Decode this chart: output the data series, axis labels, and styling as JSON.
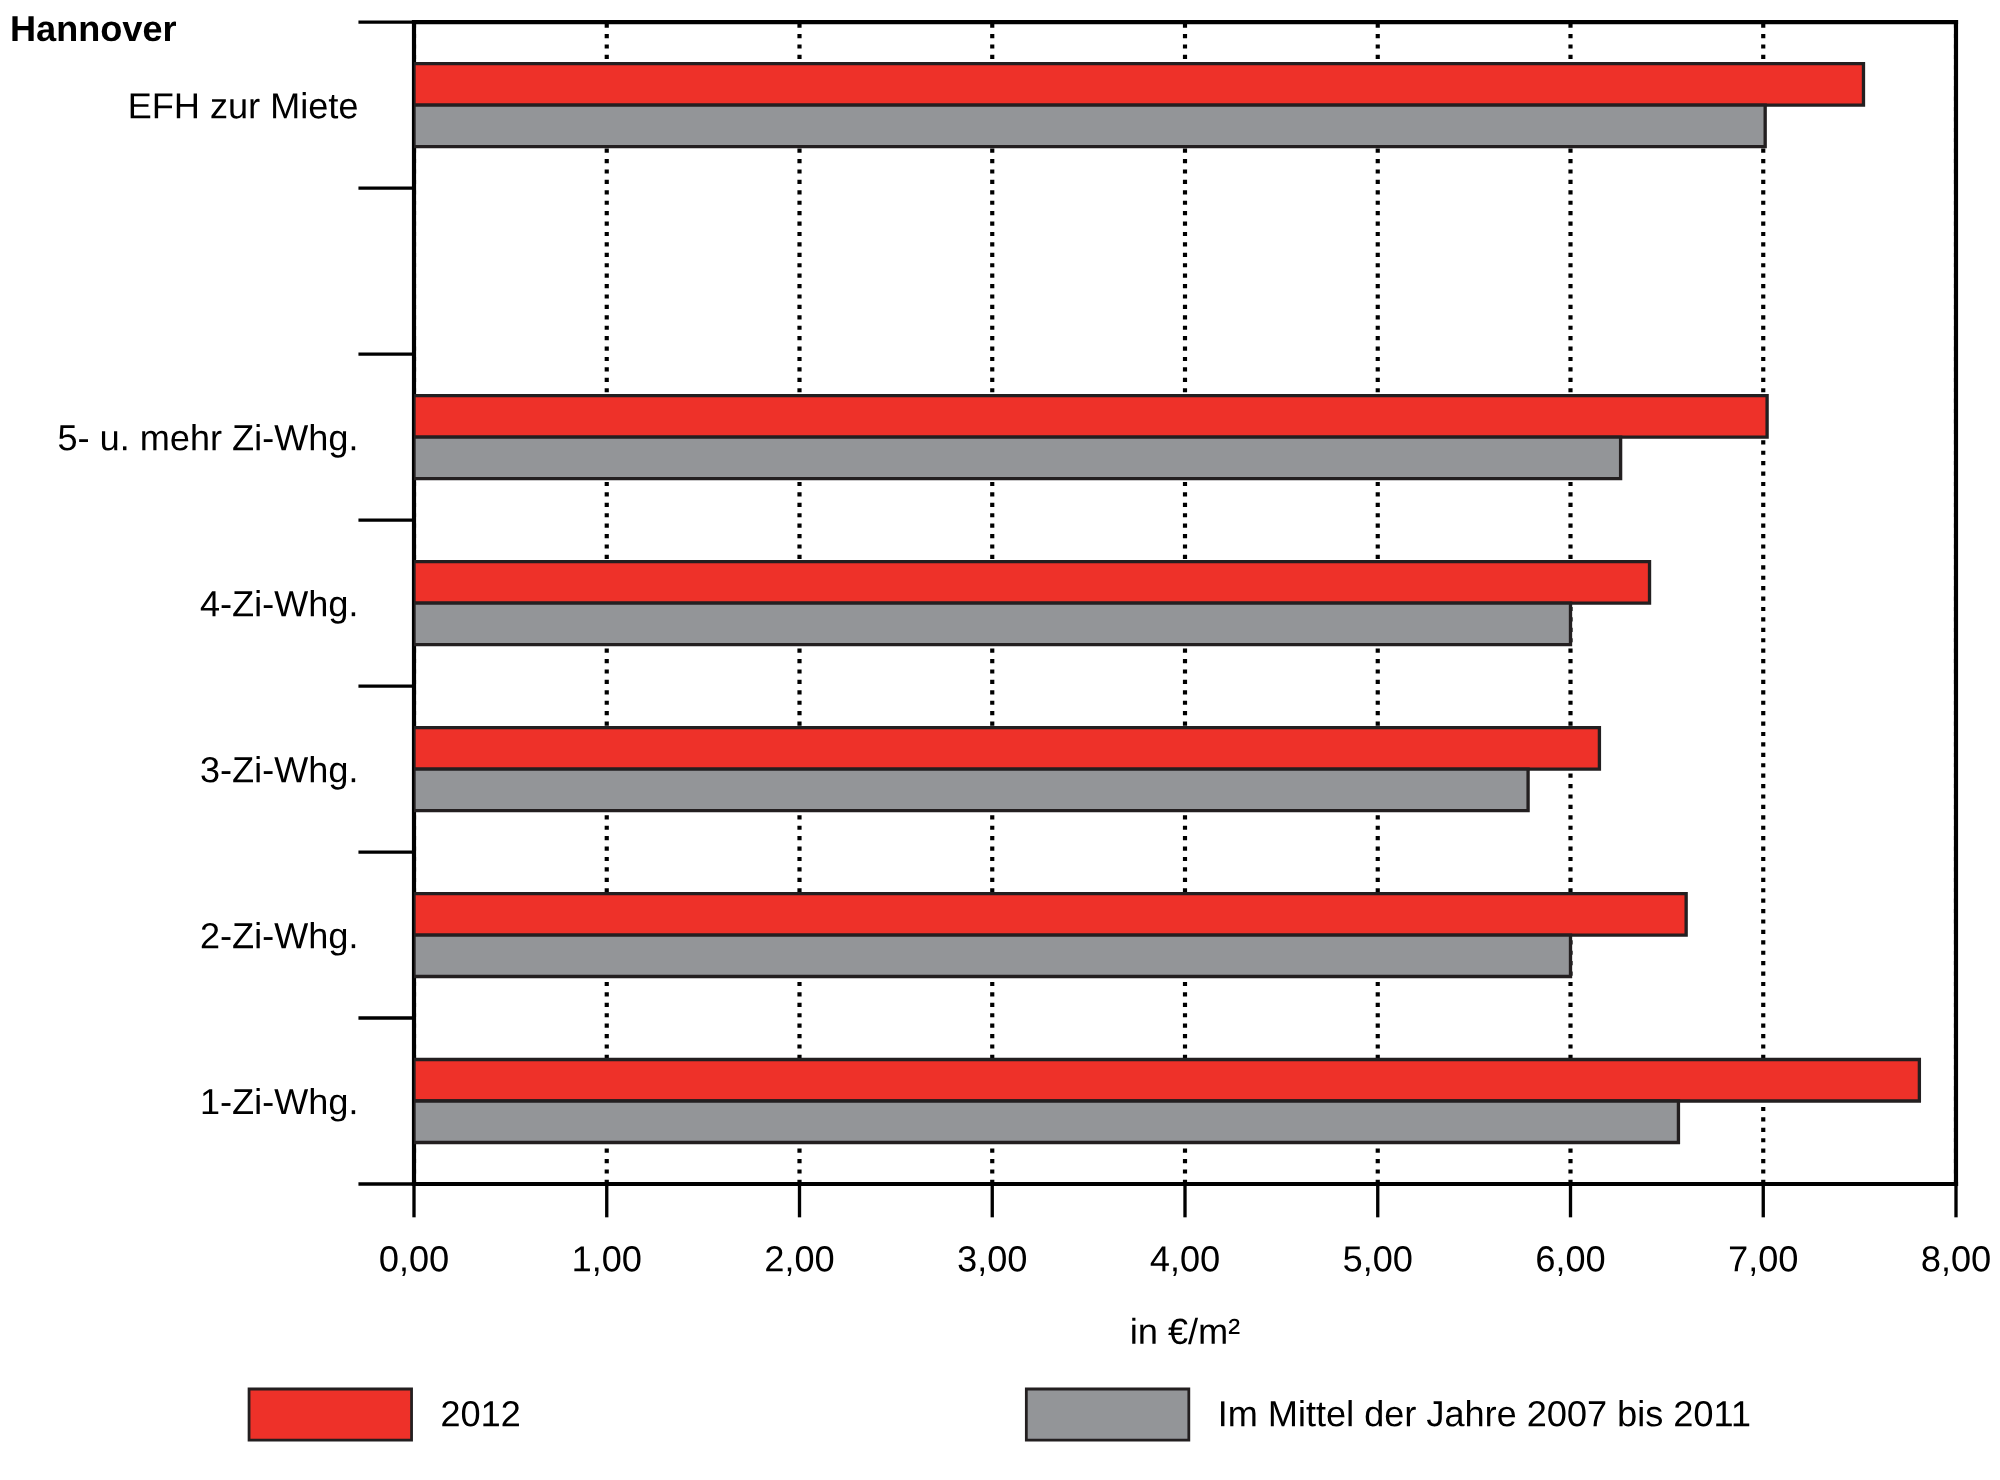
{
  "chart_data": {
    "type": "bar",
    "orientation": "horizontal",
    "title": "Hannover",
    "xlabel": "in €/m²",
    "categories": [
      "EFH zur Miete",
      null,
      "5- u. mehr Zi-Whg.",
      "4-Zi-Whg.",
      "3-Zi-Whg.",
      "2-Zi-Whg.",
      "1-Zi-Whg."
    ],
    "series": [
      {
        "name": "2012",
        "color": "#ee3129",
        "values": [
          7.52,
          null,
          7.02,
          6.41,
          6.15,
          6.6,
          7.81
        ]
      },
      {
        "name": "Im Mittel der Jahre 2007 bis 2011",
        "color": "#939598",
        "values": [
          7.01,
          null,
          6.26,
          6.0,
          5.78,
          6.0,
          6.56
        ]
      }
    ],
    "xlim": [
      0,
      8
    ],
    "xticks": [
      {
        "value": 0,
        "label": "0,00"
      },
      {
        "value": 1,
        "label": "1,00"
      },
      {
        "value": 2,
        "label": "2,00"
      },
      {
        "value": 3,
        "label": "3,00"
      },
      {
        "value": 4,
        "label": "4,00"
      },
      {
        "value": 5,
        "label": "5,00"
      },
      {
        "value": 6,
        "label": "6,00"
      },
      {
        "value": 7,
        "label": "7,00"
      },
      {
        "value": 8,
        "label": "8,00"
      }
    ],
    "grid": "x",
    "legend": "bottom"
  }
}
